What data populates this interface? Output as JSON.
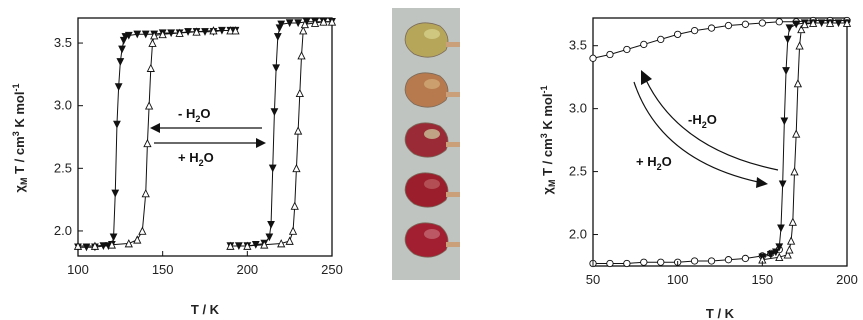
{
  "chart_data": [
    {
      "type": "scatter",
      "panel": "left",
      "xlabel": "T / K",
      "ylabel": "χ_M T / cm³ K mol⁻¹",
      "xlim": [
        100,
        250
      ],
      "ylim": [
        1.8,
        3.7
      ],
      "xticks": [
        "100",
        "150",
        "200",
        "250"
      ],
      "yticks": [
        "2.0",
        "2.5",
        "3.0",
        "3.5"
      ],
      "grid": false,
      "annotations": [
        {
          "text": "- H",
          "sub": "2",
          "tail": "O"
        },
        {
          "text": "+ H",
          "sub": "2",
          "tail": "O"
        }
      ],
      "series": [
        {
          "marker": "triangle-down-filled",
          "x": [
            100,
            105,
            110,
            115,
            118,
            120,
            121,
            122,
            123,
            124,
            125,
            126,
            127,
            128,
            130,
            135,
            140,
            145,
            150,
            155,
            160,
            165,
            170,
            175,
            180,
            185,
            190,
            193
          ],
          "y": [
            1.87,
            1.87,
            1.87,
            1.88,
            1.88,
            1.89,
            1.95,
            2.3,
            2.85,
            3.15,
            3.35,
            3.45,
            3.52,
            3.55,
            3.56,
            3.57,
            3.57,
            3.57,
            3.58,
            3.58,
            3.58,
            3.59,
            3.59,
            3.59,
            3.59,
            3.6,
            3.6,
            3.6
          ]
        },
        {
          "marker": "triangle-up-open",
          "x": [
            100,
            110,
            120,
            130,
            135,
            138,
            140,
            141,
            142,
            143,
            144,
            145,
            150,
            160,
            170,
            180,
            190,
            193
          ],
          "y": [
            1.88,
            1.88,
            1.89,
            1.9,
            1.93,
            2.0,
            2.3,
            2.7,
            3.0,
            3.3,
            3.5,
            3.56,
            3.57,
            3.58,
            3.59,
            3.6,
            3.6,
            3.6
          ]
        },
        {
          "marker": "triangle-down-filled",
          "x": [
            190,
            195,
            200,
            205,
            210,
            213,
            214,
            215,
            216,
            217,
            218,
            219,
            220,
            225,
            230,
            235,
            240,
            245,
            250
          ],
          "y": [
            1.88,
            1.88,
            1.88,
            1.89,
            1.9,
            1.95,
            2.05,
            2.5,
            2.95,
            3.3,
            3.55,
            3.62,
            3.65,
            3.66,
            3.66,
            3.67,
            3.67,
            3.67,
            3.67
          ]
        },
        {
          "marker": "triangle-up-open",
          "x": [
            190,
            200,
            210,
            220,
            225,
            227,
            228,
            229,
            230,
            231,
            232,
            233,
            234,
            240,
            245,
            250
          ],
          "y": [
            1.88,
            1.88,
            1.89,
            1.9,
            1.92,
            2.0,
            2.2,
            2.5,
            2.8,
            3.1,
            3.4,
            3.6,
            3.65,
            3.66,
            3.67,
            3.67
          ]
        }
      ]
    },
    {
      "type": "scatter",
      "panel": "right",
      "xlabel": "T / K",
      "ylabel": "χ_M T / cm³ K mol⁻¹",
      "xlim": [
        50,
        200
      ],
      "ylim": [
        1.75,
        3.72
      ],
      "xticks": [
        "50",
        "100",
        "150",
        "200"
      ],
      "yticks": [
        "2.0",
        "2.5",
        "3.0",
        "3.5"
      ],
      "grid": false,
      "annotations": [
        {
          "text": "-H",
          "sub": "2",
          "tail": "O"
        },
        {
          "text": "+ H",
          "sub": "2",
          "tail": "O"
        }
      ],
      "series": [
        {
          "marker": "circle-open",
          "x": [
            50,
            60,
            70,
            80,
            90,
            100,
            110,
            120,
            130,
            140,
            150,
            160,
            170,
            180,
            190,
            200
          ],
          "y": [
            3.4,
            3.43,
            3.47,
            3.51,
            3.55,
            3.59,
            3.62,
            3.64,
            3.66,
            3.67,
            3.68,
            3.69,
            3.69,
            3.7,
            3.7,
            3.7
          ]
        },
        {
          "marker": "circle-open",
          "x": [
            50,
            60,
            70,
            80,
            90,
            100,
            110,
            120,
            130,
            140,
            150,
            155,
            160
          ],
          "y": [
            1.77,
            1.77,
            1.77,
            1.78,
            1.78,
            1.78,
            1.79,
            1.79,
            1.8,
            1.81,
            1.83,
            1.85,
            1.88
          ]
        },
        {
          "marker": "triangle-down-filled",
          "x": [
            150,
            155,
            158,
            160,
            161,
            162,
            163,
            164,
            165,
            166,
            170,
            175,
            180,
            185,
            190,
            195,
            200
          ],
          "y": [
            1.82,
            1.84,
            1.86,
            1.9,
            2.05,
            2.4,
            2.9,
            3.3,
            3.55,
            3.64,
            3.67,
            3.68,
            3.68,
            3.68,
            3.68,
            3.68,
            3.68
          ]
        },
        {
          "marker": "triangle-up-open",
          "x": [
            150,
            160,
            165,
            166,
            167,
            168,
            169,
            170,
            171,
            172,
            173,
            175,
            180,
            190,
            200
          ],
          "y": [
            1.8,
            1.82,
            1.84,
            1.88,
            1.95,
            2.1,
            2.5,
            2.8,
            3.2,
            3.5,
            3.63,
            3.67,
            3.68,
            3.68,
            3.68
          ]
        }
      ]
    }
  ],
  "photo": {
    "crystals": [
      {
        "color": "#b5a65a",
        "shade": "#d6cf8a"
      },
      {
        "color": "#b77a4e",
        "shade": "#d0a977"
      },
      {
        "color": "#9a2a35",
        "shade": "#c9c09a"
      },
      {
        "color": "#9b1e2c",
        "shade": "#b85a5f"
      },
      {
        "color": "#a11f31",
        "shade": "#c26670"
      }
    ],
    "background": "#bfc4c0"
  }
}
